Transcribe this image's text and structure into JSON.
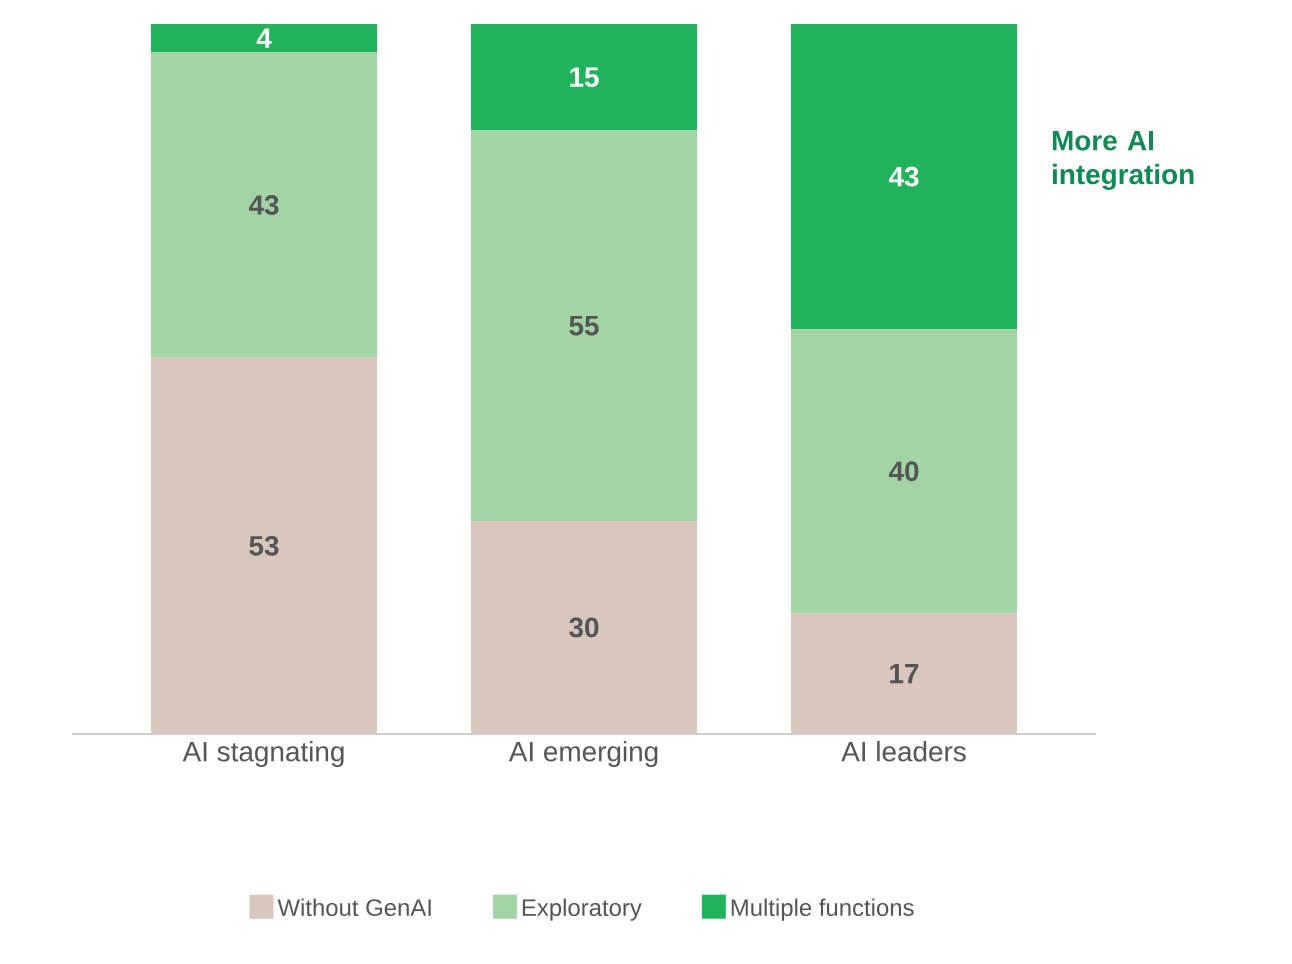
{
  "chart_data": {
    "type": "bar",
    "stacked": true,
    "categories": [
      "AI stagnating",
      "AI emerging",
      "AI leaders"
    ],
    "series": [
      {
        "name": "Without GenAI",
        "color": "#d9c6bc",
        "values": [
          53,
          30,
          17
        ],
        "value_labels": [
          "53",
          "30",
          "17"
        ]
      },
      {
        "name": "Exploratory",
        "color": "#a4d4a6",
        "values": [
          43,
          55,
          40
        ],
        "value_labels": [
          "43",
          "55",
          "40"
        ]
      },
      {
        "name": "Multiple functions",
        "color": "#21b35b",
        "values": [
          4,
          15,
          43
        ],
        "value_labels": [
          "4",
          "15",
          "43"
        ]
      }
    ],
    "legend": "bottom",
    "annotations": [
      "More AI integration"
    ]
  }
}
